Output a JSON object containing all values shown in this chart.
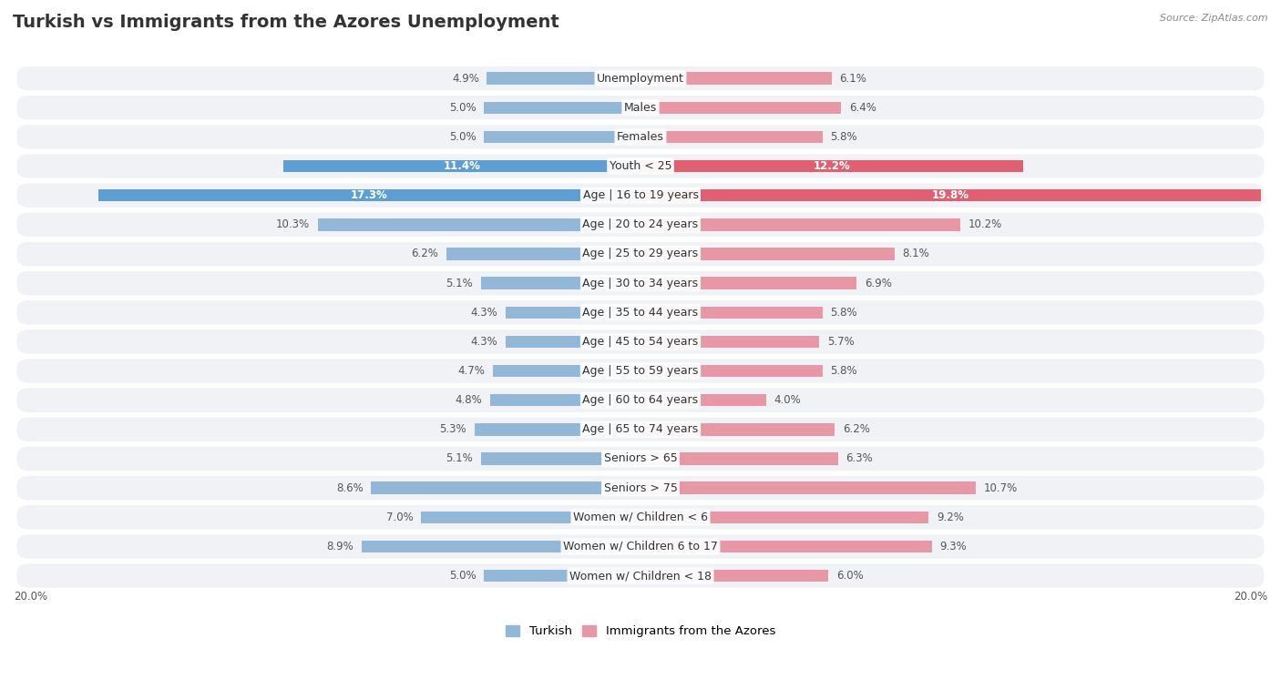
{
  "title": "Turkish vs Immigrants from the Azores Unemployment",
  "source": "Source: ZipAtlas.com",
  "categories": [
    "Unemployment",
    "Males",
    "Females",
    "Youth < 25",
    "Age | 16 to 19 years",
    "Age | 20 to 24 years",
    "Age | 25 to 29 years",
    "Age | 30 to 34 years",
    "Age | 35 to 44 years",
    "Age | 45 to 54 years",
    "Age | 55 to 59 years",
    "Age | 60 to 64 years",
    "Age | 65 to 74 years",
    "Seniors > 65",
    "Seniors > 75",
    "Women w/ Children < 6",
    "Women w/ Children 6 to 17",
    "Women w/ Children < 18"
  ],
  "turkish": [
    4.9,
    5.0,
    5.0,
    11.4,
    17.3,
    10.3,
    6.2,
    5.1,
    4.3,
    4.3,
    4.7,
    4.8,
    5.3,
    5.1,
    8.6,
    7.0,
    8.9,
    5.0
  ],
  "azores": [
    6.1,
    6.4,
    5.8,
    12.2,
    19.8,
    10.2,
    8.1,
    6.9,
    5.8,
    5.7,
    5.8,
    4.0,
    6.2,
    6.3,
    10.7,
    9.2,
    9.3,
    6.0
  ],
  "turkish_color": "#92b8d8",
  "azores_color": "#e898a4",
  "turkish_highlight_color": "#5b9fd4",
  "azores_highlight_color": "#e06070",
  "highlight_rows": [
    "Youth < 25",
    "Age | 16 to 19 years"
  ],
  "bg_color": "#ffffff",
  "row_bg_color": "#f0f2f5",
  "xlim": 20.0,
  "legend_turkish": "Turkish",
  "legend_azores": "Immigrants from the Azores",
  "title_fontsize": 14,
  "label_fontsize": 9,
  "value_fontsize": 8.5
}
